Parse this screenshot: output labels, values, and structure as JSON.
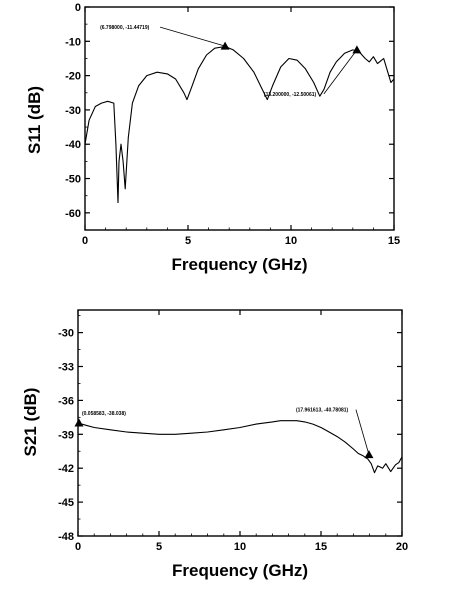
{
  "chart_data": [
    {
      "type": "line",
      "xlabel": "Frequency (GHz)",
      "ylabel": "S11 (dB)",
      "xlim": [
        0,
        15
      ],
      "ylim": [
        -65,
        0
      ],
      "xticks": [
        "0",
        "5",
        "10",
        "15"
      ],
      "yticks": [
        "0",
        "-10",
        "-20",
        "-30",
        "-40",
        "-50",
        "-60"
      ],
      "grid": false,
      "series": [
        {
          "x": [
            0,
            0.2,
            0.5,
            0.8,
            1.1,
            1.4,
            1.5,
            1.6,
            1.65,
            1.75,
            1.85,
            1.95,
            2.1,
            2.3,
            2.6,
            3.0,
            3.5,
            4.0,
            4.4,
            4.8,
            4.95,
            5.2,
            5.5,
            5.9,
            6.3,
            6.8,
            7.2,
            7.7,
            8.2,
            8.6,
            8.85,
            9.1,
            9.5,
            9.9,
            10.3,
            10.7,
            11.1,
            11.4,
            11.6,
            11.9,
            12.2,
            12.6,
            13.0,
            13.3,
            13.6,
            13.8,
            14.0,
            14.2,
            14.5,
            14.7,
            14.85,
            15.0
          ],
          "y": [
            -40,
            -33,
            -29,
            -28,
            -27.5,
            -28,
            -40,
            -57,
            -45,
            -40,
            -45,
            -53,
            -38,
            -28,
            -23,
            -20,
            -19,
            -19.5,
            -21,
            -25,
            -27,
            -23,
            -18,
            -14,
            -12,
            -11.5,
            -12.5,
            -15,
            -19,
            -24,
            -27,
            -23,
            -17.5,
            -15,
            -15.5,
            -18,
            -22,
            -26,
            -24,
            -19,
            -16,
            -13.5,
            -12.5,
            -13,
            -15,
            -16,
            -14.5,
            -16.5,
            -15,
            -19,
            -22,
            -21
          ]
        }
      ],
      "annotations": [
        {
          "text": "(6.798000, -11.44719)",
          "x": 6.8,
          "y": -11.4
        },
        {
          "text": "(13.200000, -12.50061)",
          "x": 13.2,
          "y": -12.5
        }
      ]
    },
    {
      "type": "line",
      "xlabel": "Frequency (GHz)",
      "ylabel": "S21 (dB)",
      "xlim": [
        0,
        20
      ],
      "ylim": [
        -48,
        -28
      ],
      "xticks": [
        "0",
        "5",
        "10",
        "15",
        "20"
      ],
      "yticks": [
        "-30",
        "-33",
        "-36",
        "-39",
        "-42",
        "-45",
        "-48"
      ],
      "grid": false,
      "series": [
        {
          "x": [
            0,
            0.5,
            1,
            2,
            3,
            4,
            5,
            6,
            7,
            8,
            9,
            10,
            11,
            12,
            12.5,
            13,
            13.5,
            14,
            14.5,
            15,
            15.5,
            16,
            16.5,
            17,
            17.3,
            17.6,
            17.9,
            18.1,
            18.3,
            18.5,
            18.8,
            19.0,
            19.3,
            19.6,
            19.8,
            20.0
          ],
          "y": [
            -38.0,
            -38.2,
            -38.4,
            -38.6,
            -38.8,
            -38.9,
            -39.0,
            -39.0,
            -38.9,
            -38.8,
            -38.6,
            -38.4,
            -38.1,
            -37.9,
            -37.8,
            -37.8,
            -37.8,
            -37.9,
            -38.1,
            -38.4,
            -38.8,
            -39.2,
            -39.7,
            -40.3,
            -40.7,
            -40.9,
            -41.2,
            -41.6,
            -42.4,
            -41.8,
            -42.0,
            -41.6,
            -42.3,
            -41.7,
            -41.5,
            -41.0
          ]
        }
      ],
      "annotations": [
        {
          "text": "(0.058583, -38.038)",
          "x": 0.06,
          "y": -38.0
        },
        {
          "text": "(17.961613, -40.78081)",
          "x": 17.96,
          "y": -40.8
        }
      ]
    }
  ]
}
